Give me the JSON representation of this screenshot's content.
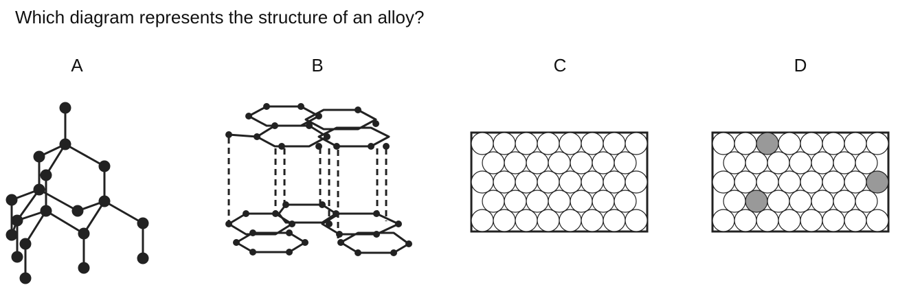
{
  "question": "Which diagram represents the structure of an alloy?",
  "options": {
    "a": "A",
    "b": "B",
    "c": "C",
    "d": "D"
  },
  "colors": {
    "ink": "#222222",
    "atom_fill": "#ffffff",
    "alloy_atom_fill": "#999999"
  }
}
